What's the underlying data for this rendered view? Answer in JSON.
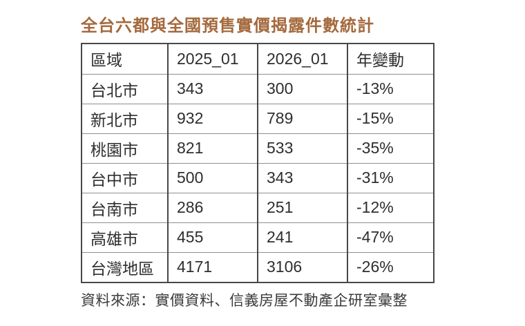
{
  "chart_data": {
    "type": "table",
    "title": "全台六都與全國預售實價揭露件數統計",
    "columns": [
      "區域",
      "2025_01",
      "2026_01",
      "年變動"
    ],
    "rows": [
      [
        "台北市",
        "343",
        "300",
        "-13%"
      ],
      [
        "新北市",
        "932",
        "789",
        "-15%"
      ],
      [
        "桃園市",
        "821",
        "533",
        "-35%"
      ],
      [
        "台中市",
        "500",
        "343",
        "-31%"
      ],
      [
        "台南市",
        "286",
        "251",
        "-12%"
      ],
      [
        "高雄市",
        "455",
        "241",
        "-47%"
      ],
      [
        "台灣地區",
        "4171",
        "3106",
        "-26%"
      ]
    ],
    "source": "資料來源：實價資料、信義房屋不動產企研室彙整"
  },
  "colors": {
    "title": "#A4693C",
    "border_dark": "#474747",
    "border_light": "#8e8e8e",
    "cell_text": "#2e2e2e",
    "source_text": "#3a3a3a",
    "background": "#ffffff"
  }
}
